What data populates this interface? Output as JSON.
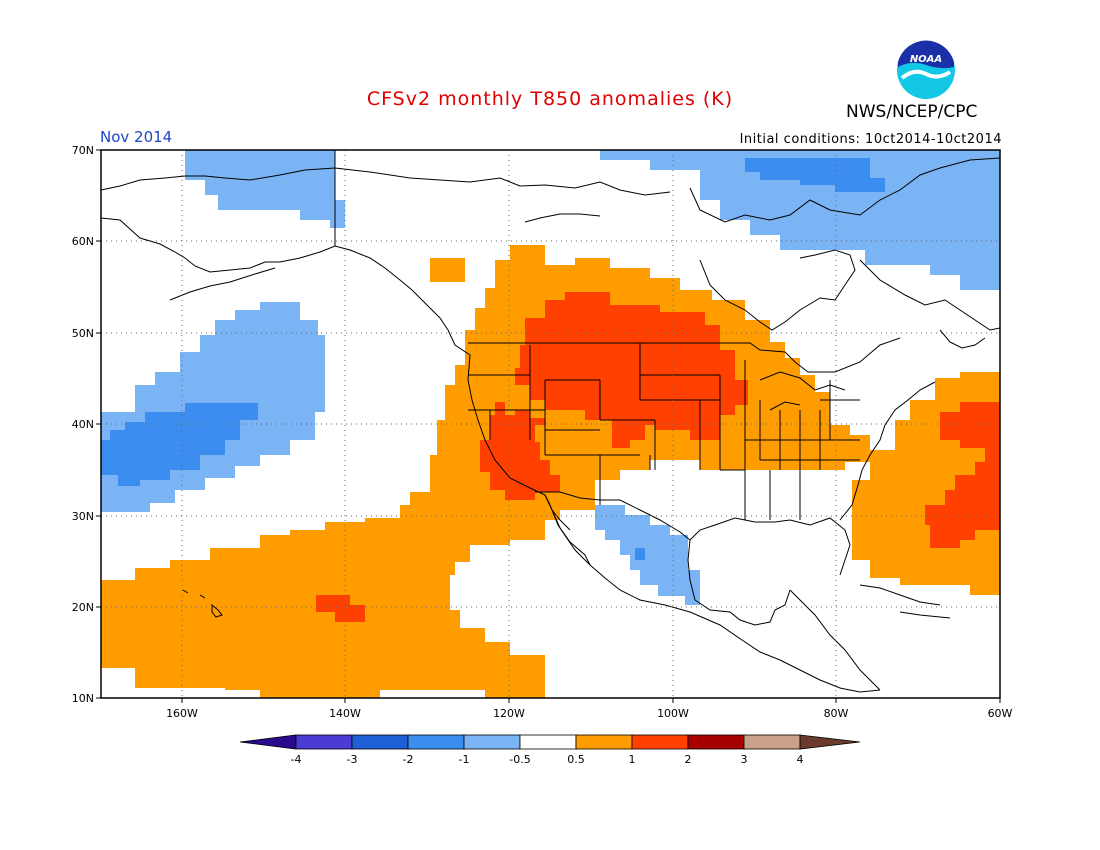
{
  "title": "CFSv2 monthly T850 anomalies (K)",
  "period": "Nov 2014",
  "agency": "NWS/NCEP/CPC",
  "initial_conditions": "Initial conditions: 10ct2014-10ct2014",
  "logo": {
    "icon": "noaa-logo",
    "text": "NOAA"
  },
  "map": {
    "lon_range": [
      -172,
      -60
    ],
    "lat_range": [
      10,
      70
    ],
    "lat_labels": [
      "70N",
      "60N",
      "50N",
      "40N",
      "30N",
      "20N",
      "10N"
    ],
    "lon_labels": [
      "160W",
      "140W",
      "120W",
      "100W",
      "80W",
      "60W"
    ]
  },
  "colorbar": {
    "labels": [
      "-4",
      "-3",
      "-2",
      "-1",
      "-0.5",
      "0.5",
      "1",
      "2",
      "3",
      "4"
    ],
    "colors": [
      "#2a0a8c",
      "#4c3bd4",
      "#1f5fd6",
      "#3b8ef0",
      "#7ab4f5",
      "#ffffff",
      "#ff9d00",
      "#ff4000",
      "#a80000",
      "#c9a08a",
      "#6b3a2a"
    ]
  },
  "colors": {
    "light_blue": "#7ab4f5",
    "blue": "#3b8ef0",
    "orange": "#ff9d00",
    "red_orange": "#ff4000"
  }
}
